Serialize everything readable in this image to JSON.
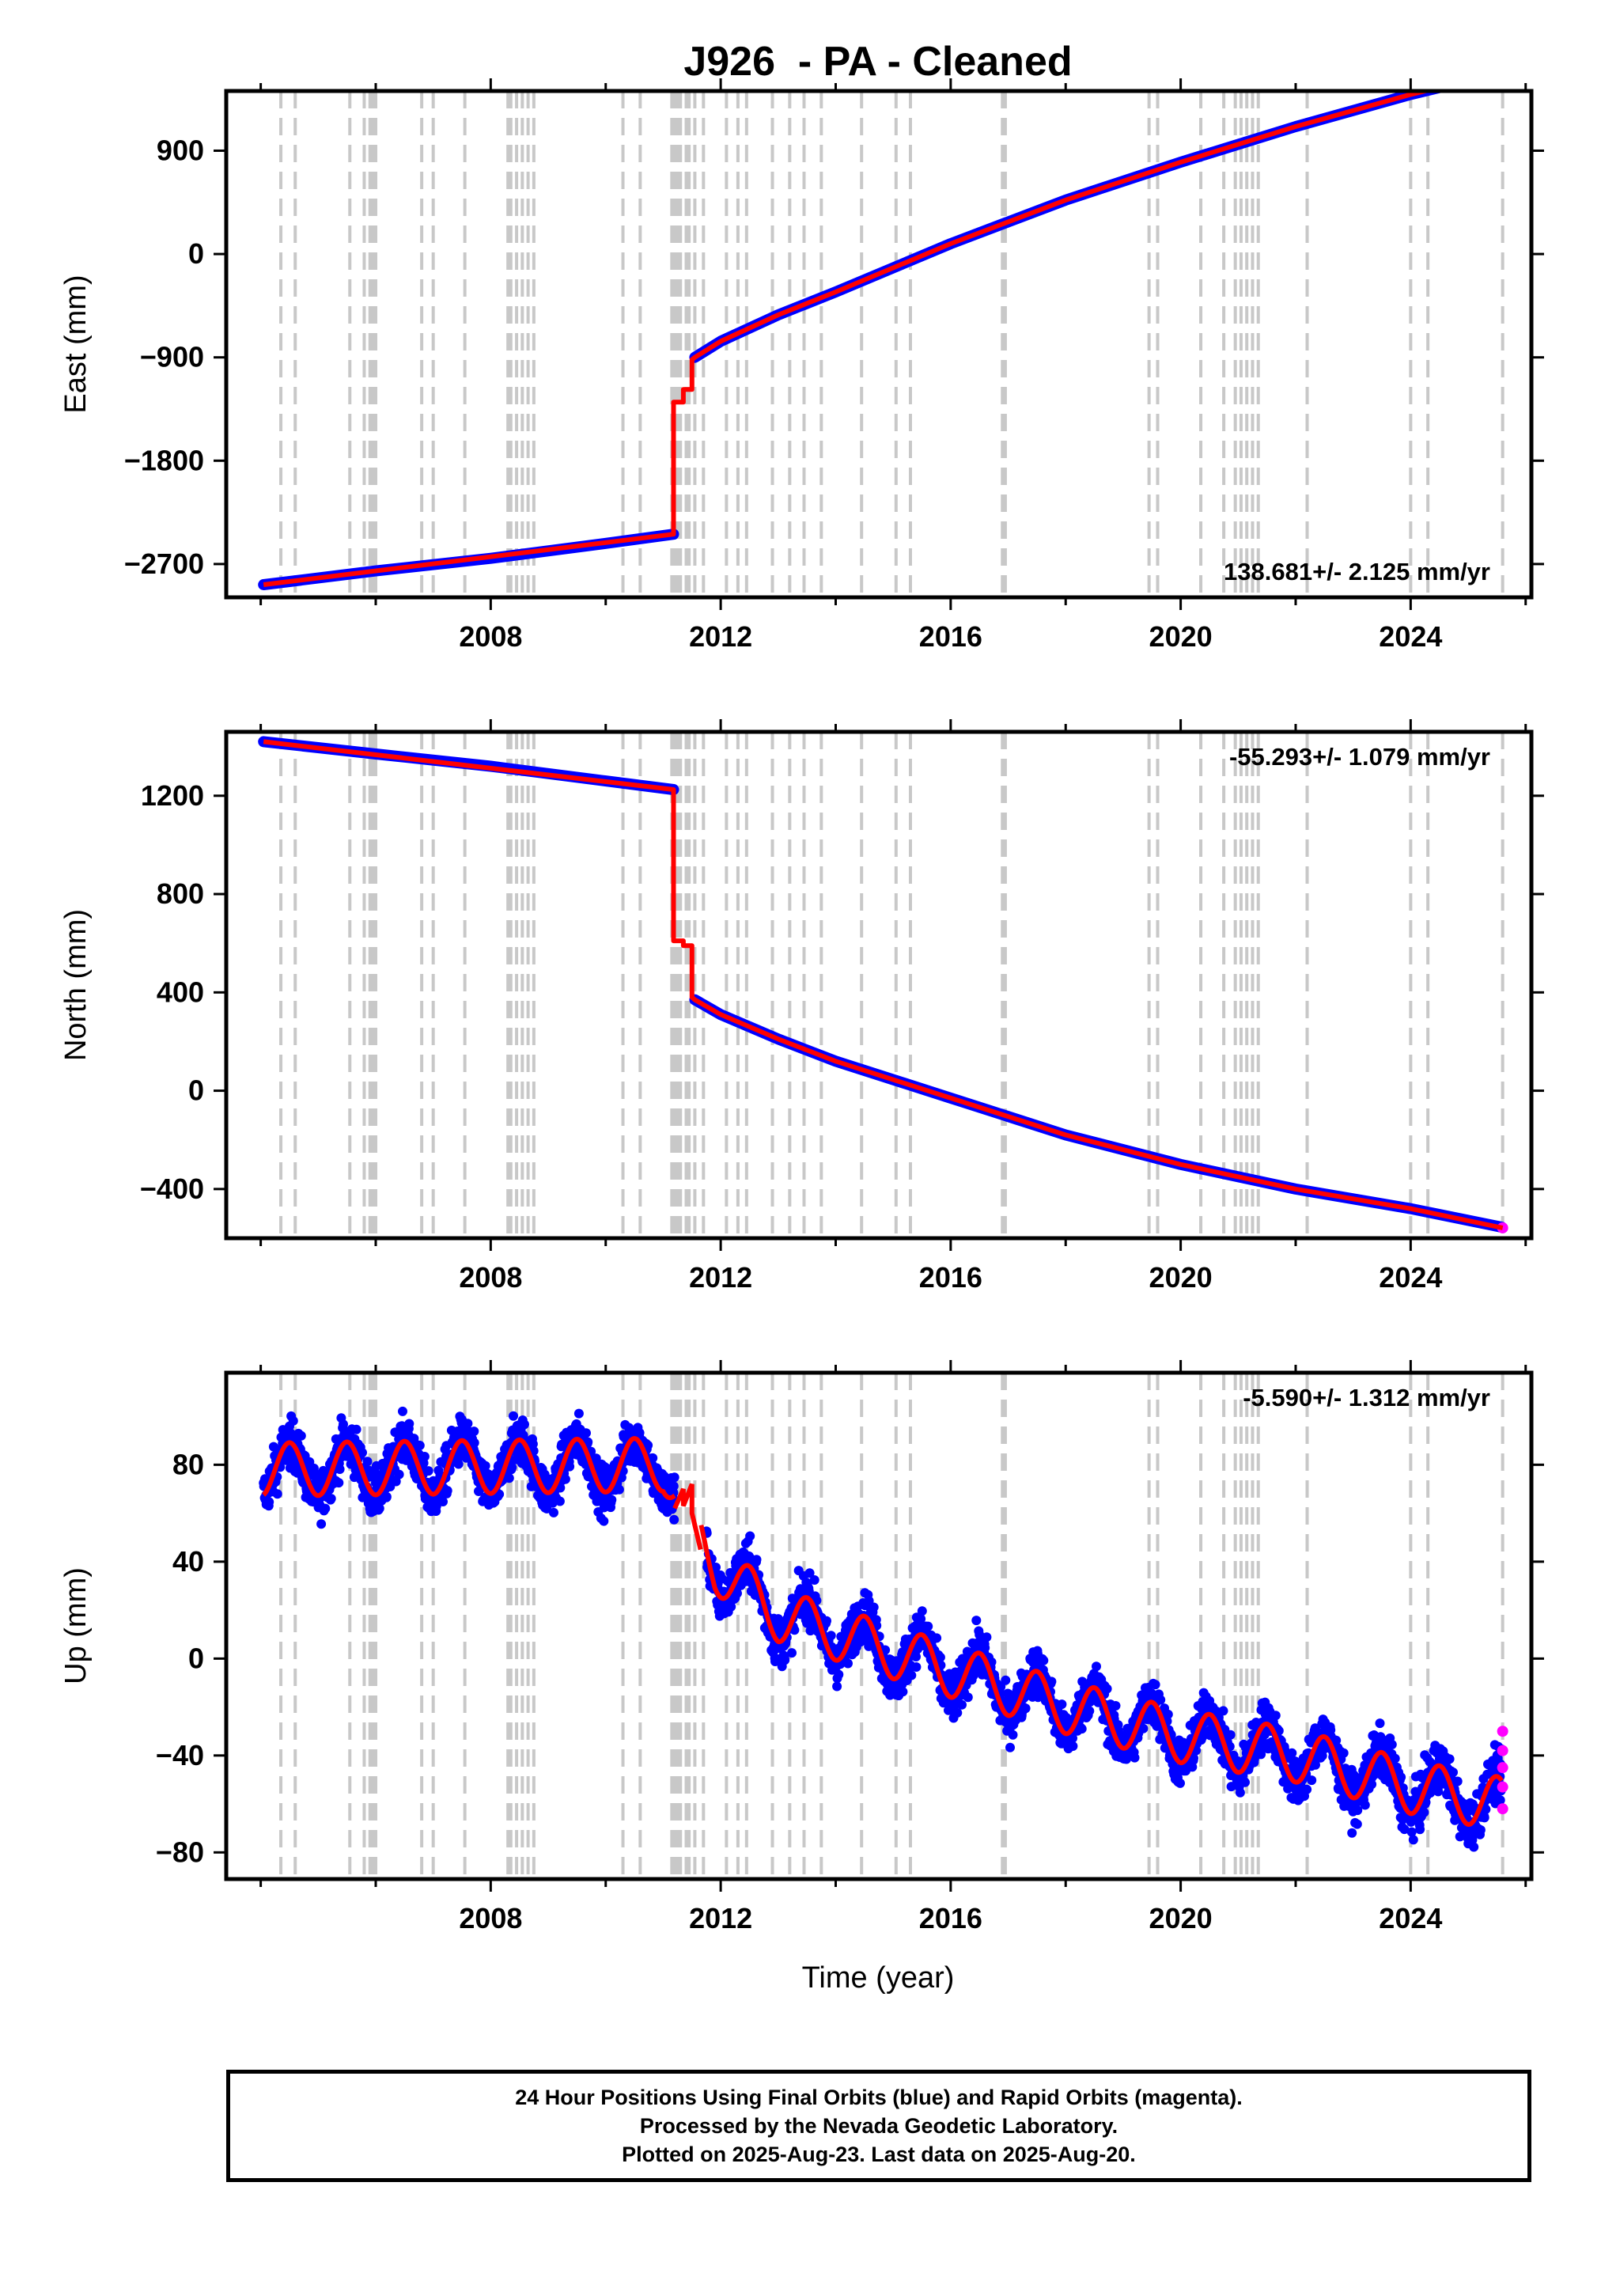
{
  "title": "J926  - PA - Cleaned",
  "xlabel": "Time (year)",
  "colors": {
    "final_orbits": "#0000ff",
    "rapid_orbits": "#ff00ff",
    "model_fit": "#ff0000",
    "event_lines": "#c8c8c8",
    "frame": "#000000"
  },
  "chart_data": [
    {
      "type": "scatter",
      "ylabel": "East (mm)",
      "xlim": [
        2003.4,
        2026.1
      ],
      "ylim": [
        -2990,
        1420
      ],
      "xticks": [
        2008,
        2012,
        2016,
        2020,
        2024
      ],
      "yticks": [
        -2700,
        -1800,
        -900,
        0,
        900
      ],
      "rate_label": "138.681+/- 2.125 mm/yr",
      "rate_position": "bottom-right",
      "series": [
        {
          "kind": "final_orbits",
          "segments": [
            {
              "x": [
                2004.05,
                2006.0,
                2008.0,
                2010.0,
                2011.18
              ],
              "y": [
                -2880,
                -2760,
                -2650,
                -2520,
                -2440
              ]
            },
            {
              "x": [
                2011.55,
                2012.0,
                2013.0,
                2014.0,
                2016.0,
                2018.0,
                2020.0,
                2022.0,
                2024.0,
                2025.58
              ],
              "y": [
                -900,
                -760,
                -530,
                -330,
                90,
                470,
                800,
                1110,
                1390,
                1580
              ]
            }
          ]
        },
        {
          "kind": "rapid_orbits",
          "x": [
            2025.6
          ],
          "y": [
            1585
          ]
        },
        {
          "kind": "model_fit",
          "x": [
            2004.05,
            2011.18,
            2011.18,
            2011.35,
            2011.35,
            2011.5,
            2011.5,
            2011.55,
            2012.0,
            2013.0,
            2014.0,
            2016.0,
            2018.0,
            2020.0,
            2022.0,
            2024.0,
            2025.6
          ],
          "y": [
            -2880,
            -2440,
            -1290,
            -1290,
            -1180,
            -1180,
            -920,
            -900,
            -760,
            -530,
            -330,
            90,
            470,
            800,
            1110,
            1390,
            1585
          ]
        }
      ]
    },
    {
      "type": "scatter",
      "ylabel": "North (mm)",
      "xlim": [
        2003.4,
        2026.1
      ],
      "ylim": [
        -600,
        1460
      ],
      "xticks": [
        2008,
        2012,
        2016,
        2020,
        2024
      ],
      "yticks": [
        -400,
        0,
        400,
        800,
        1200
      ],
      "rate_label": "-55.293+/- 1.079 mm/yr",
      "rate_position": "top-right",
      "series": [
        {
          "kind": "final_orbits",
          "segments": [
            {
              "x": [
                2004.05,
                2006.0,
                2008.0,
                2010.0,
                2011.18
              ],
              "y": [
                1420,
                1370,
                1320,
                1260,
                1225
              ]
            },
            {
              "x": [
                2011.55,
                2012.0,
                2013.0,
                2014.0,
                2016.0,
                2018.0,
                2020.0,
                2022.0,
                2024.0,
                2025.58
              ],
              "y": [
                370,
                310,
                210,
                120,
                -30,
                -180,
                -300,
                -400,
                -480,
                -555
              ]
            }
          ]
        },
        {
          "kind": "rapid_orbits",
          "x": [
            2025.6
          ],
          "y": [
            -558
          ]
        },
        {
          "kind": "model_fit",
          "x": [
            2004.05,
            2011.18,
            2011.18,
            2011.35,
            2011.35,
            2011.5,
            2011.5,
            2011.55,
            2012.0,
            2013.0,
            2014.0,
            2016.0,
            2018.0,
            2020.0,
            2022.0,
            2024.0,
            2025.6
          ],
          "y": [
            1420,
            1225,
            610,
            610,
            590,
            590,
            380,
            370,
            310,
            210,
            120,
            -30,
            -180,
            -300,
            -400,
            -480,
            -558
          ]
        }
      ]
    },
    {
      "type": "scatter",
      "ylabel": "Up (mm)",
      "xlim": [
        2003.4,
        2026.1
      ],
      "ylim": [
        -91,
        118
      ],
      "xticks": [
        2008,
        2012,
        2016,
        2020,
        2024
      ],
      "yticks": [
        -80,
        -40,
        0,
        40,
        80
      ],
      "rate_label": "-5.590+/- 1.312 mm/yr",
      "rate_position": "top-right",
      "series": [
        {
          "kind": "final_orbits",
          "trend": [
            [
              2004.05,
              78
            ],
            [
              2011.0,
              80
            ],
            [
              2011.9,
              38
            ],
            [
              2013.0,
              18
            ],
            [
              2016.0,
              -5
            ],
            [
              2018.0,
              -20
            ],
            [
              2020.0,
              -32
            ],
            [
              2022.0,
              -40
            ],
            [
              2024.0,
              -53
            ],
            [
              2025.58,
              -60
            ]
          ],
          "seasonal_amplitude": 11,
          "scatter_amplitude": 9,
          "gap": [
            2011.2,
            2011.75
          ]
        },
        {
          "kind": "rapid_orbits",
          "x": [
            2025.6,
            2025.6,
            2025.6,
            2025.6,
            2025.6
          ],
          "y": [
            -30,
            -38,
            -45,
            -53,
            -62
          ]
        },
        {
          "kind": "model_fit",
          "trend": [
            [
              2004.05,
              78
            ],
            [
              2011.0,
              80
            ],
            [
              2011.9,
              38
            ],
            [
              2013.0,
              18
            ],
            [
              2016.0,
              -5
            ],
            [
              2018.0,
              -20
            ],
            [
              2020.0,
              -32
            ],
            [
              2022.0,
              -40
            ],
            [
              2024.0,
              -53
            ],
            [
              2025.58,
              -60
            ]
          ],
          "seasonal_amplitude": 11,
          "step_segment": {
            "x": [
              2011.2,
              2011.35,
              2011.35,
              2011.5,
              2011.5,
              2011.65
            ],
            "y": [
              62,
              70,
              63,
              72,
              60,
              45
            ]
          }
        }
      ]
    }
  ],
  "event_lines": [
    2004.35,
    2004.6,
    2005.55,
    2005.8,
    2005.9,
    2005.95,
    2006.0,
    2006.8,
    2007.0,
    2007.55,
    2008.3,
    2008.35,
    2008.45,
    2008.55,
    2008.65,
    2008.75,
    2010.3,
    2010.6,
    2011.15,
    2011.2,
    2011.25,
    2011.3,
    2011.4,
    2011.45,
    2011.55,
    2011.7,
    2012.1,
    2012.3,
    2012.45,
    2012.9,
    2013.2,
    2013.45,
    2013.75,
    2014.45,
    2015.05,
    2015.3,
    2016.9,
    2016.95,
    2019.45,
    2019.6,
    2020.35,
    2020.75,
    2020.95,
    2021.05,
    2021.15,
    2021.25,
    2021.35,
    2022.2,
    2024.0,
    2024.3,
    2025.6
  ],
  "footer": {
    "line1": "24 Hour Positions Using Final Orbits (blue) and Rapid Orbits (magenta).",
    "line2": "Processed by the Nevada Geodetic Laboratory.",
    "line3": "Plotted on 2025-Aug-23. Last data on 2025-Aug-20."
  }
}
